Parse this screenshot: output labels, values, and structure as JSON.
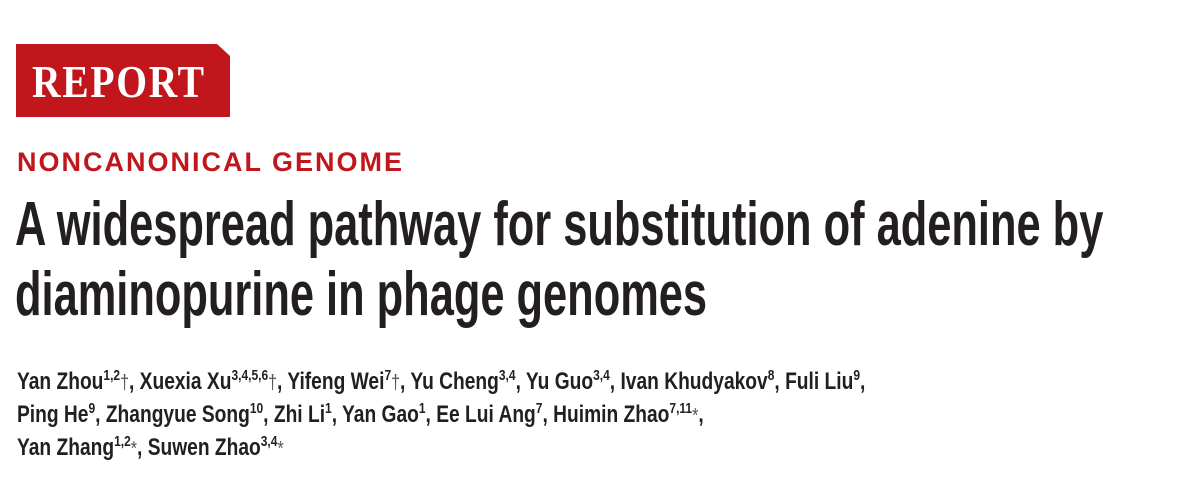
{
  "banner": {
    "label": "REPORT",
    "color": "#c1161c"
  },
  "kicker": "NONCANONICAL GENOME",
  "title": {
    "line1": "A widespread pathway for substitution of adenine by",
    "line2": "diaminopurine in phage genomes"
  },
  "authors": [
    [
      {
        "name": "Yan Zhou",
        "sup": "1,2",
        "mark": "†",
        "sep": ", "
      },
      {
        "name": "Xuexia Xu",
        "sup": "3,4,5,6",
        "mark": "†",
        "sep": ", "
      },
      {
        "name": "Yifeng Wei",
        "sup": "7",
        "mark": "†",
        "sep": ", "
      },
      {
        "name": "Yu Cheng",
        "sup": "3,4",
        "mark": "",
        "sep": ", "
      },
      {
        "name": "Yu Guo",
        "sup": "3,4",
        "mark": "",
        "sep": ", "
      },
      {
        "name": "Ivan Khudyakov",
        "sup": "8",
        "mark": "",
        "sep": ", "
      },
      {
        "name": "Fuli Liu",
        "sup": "9",
        "mark": "",
        "sep": ","
      }
    ],
    [
      {
        "name": "Ping He",
        "sup": "9",
        "mark": "",
        "sep": ", "
      },
      {
        "name": "Zhangyue Song",
        "sup": "10",
        "mark": "",
        "sep": ", "
      },
      {
        "name": "Zhi Li",
        "sup": "1",
        "mark": "",
        "sep": ", "
      },
      {
        "name": "Yan Gao",
        "sup": "1",
        "mark": "",
        "sep": ", "
      },
      {
        "name": "Ee Lui Ang",
        "sup": "7",
        "mark": "",
        "sep": ", "
      },
      {
        "name": "Huimin Zhao",
        "sup": "7,11",
        "mark": "*",
        "sep": ","
      }
    ],
    [
      {
        "name": "Yan Zhang",
        "sup": "1,2",
        "mark": "*",
        "sep": ", "
      },
      {
        "name": "Suwen Zhao",
        "sup": "3,4",
        "mark": "*",
        "sep": ""
      }
    ]
  ]
}
